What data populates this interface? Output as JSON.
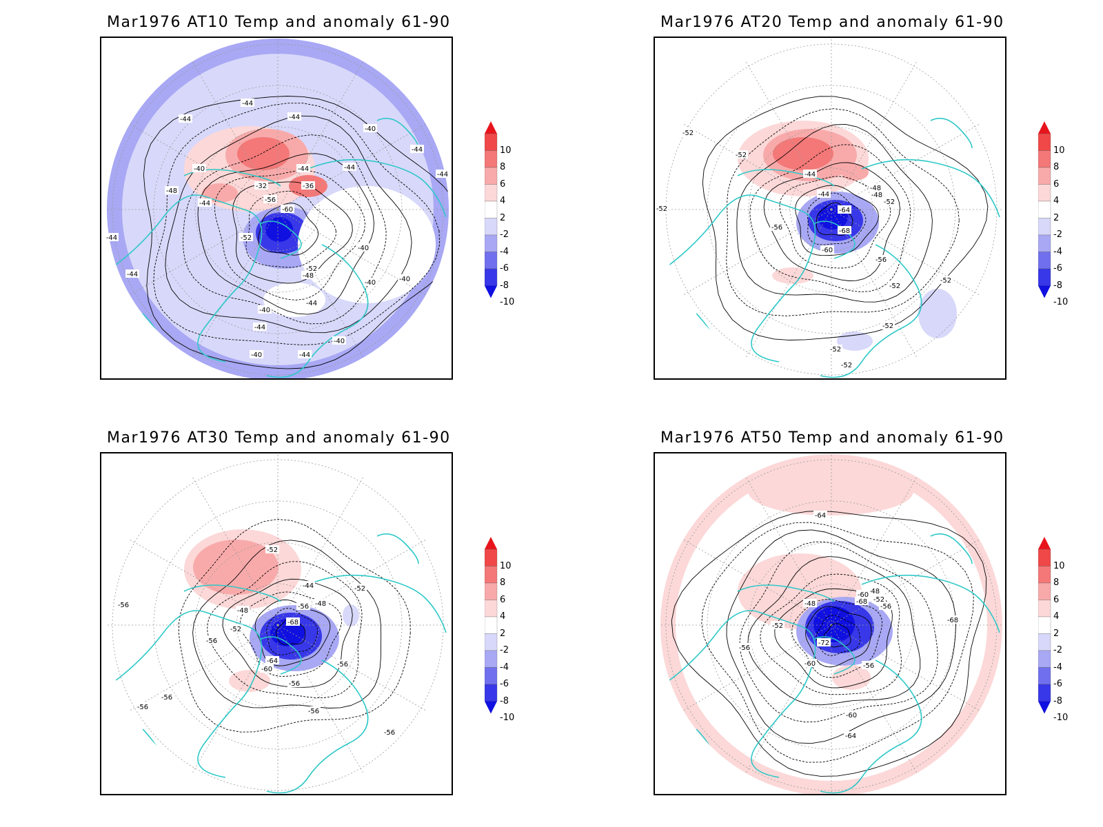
{
  "figure": {
    "panels": [
      {
        "id": "at10",
        "title": "Mar1976 AT10 Temp and anomaly 61-90",
        "contour_labels": [
          "-44",
          "-44",
          "-44",
          "-40",
          "-44",
          "-44",
          "-44",
          "-36",
          "-32",
          "-40",
          "-48",
          "-44",
          "-56",
          "-60",
          "-52",
          "-40",
          "-44",
          "-52",
          "-48",
          "-40",
          "-44",
          "-40",
          "-44",
          "-40",
          "-40",
          "-44",
          "-44",
          "-40",
          "-44"
        ]
      },
      {
        "id": "at20",
        "title": "Mar1976 AT20 Temp and anomaly 61-90",
        "contour_labels": [
          "-52",
          "-52",
          "-44",
          "-48",
          "-44",
          "-48",
          "-52",
          "-52",
          "-64",
          "-56",
          "-68",
          "-60",
          "-56",
          "-52",
          "-52",
          "-52",
          "-52",
          "-52"
        ]
      },
      {
        "id": "at30",
        "title": "Mar1976 AT30 Temp and anomaly 61-90",
        "contour_labels": [
          "-52",
          "-44",
          "-52",
          "-56",
          "-48",
          "-56",
          "-48",
          "-68",
          "-52",
          "-56",
          "-64",
          "-60",
          "-56",
          "-56",
          "-56",
          "-56",
          "-56",
          "-56"
        ]
      },
      {
        "id": "at50",
        "title": "Mar1976 AT50 Temp and anomaly 61-90",
        "contour_labels": [
          "-64",
          "-48",
          "-52",
          "-60",
          "-68",
          "-56",
          "-48",
          "-52",
          "-56",
          "-72",
          "-60",
          "-56",
          "-68",
          "-60",
          "-64"
        ]
      }
    ],
    "colorbar": {
      "labels": [
        "10",
        "8",
        "6",
        "4",
        "2",
        "-2",
        "-4",
        "-6",
        "-8",
        "-10"
      ],
      "colors": [
        "#e8141c",
        "#f04848",
        "#f47878",
        "#f8aaaa",
        "#fcd8d8",
        "#ffffff",
        "#d8d8fa",
        "#a8a8f4",
        "#7070ee",
        "#3838e8",
        "#1010e0"
      ]
    },
    "colors": {
      "coastline": "#2ec8c8",
      "contour": "#000000",
      "graticule": "#999999"
    }
  }
}
